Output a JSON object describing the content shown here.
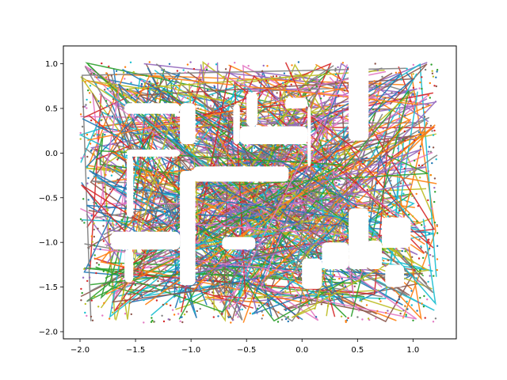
{
  "chart_data": {
    "type": "line",
    "title": "",
    "xlabel": "",
    "ylabel": "",
    "xlim": [
      -2.15,
      1.39
    ],
    "ylim": [
      -2.08,
      1.2
    ],
    "grid": false,
    "legend": "none",
    "x_ticks": [
      -2.0,
      -1.5,
      -1.0,
      -0.5,
      0.0,
      0.5,
      1.0
    ],
    "x_tick_labels": [
      "−2.0",
      "−1.5",
      "−1.0",
      "−0.5",
      "0.0",
      "0.5",
      "1.0"
    ],
    "y_ticks": [
      1.0,
      0.5,
      0.0,
      -0.5,
      -1.0,
      -1.5,
      -2.0
    ],
    "y_tick_labels": [
      "1.0",
      "0.5",
      "0.0",
      "−0.5",
      "−1.0",
      "−1.5",
      "−2.0"
    ],
    "region": {
      "x_range": [
        -2.0,
        1.22
      ],
      "y_range": [
        -1.9,
        1.02
      ]
    },
    "obstacles": [
      {
        "x": [
          -1.6,
          -1.1
        ],
        "y": [
          0.44,
          0.56
        ]
      },
      {
        "x": [
          -1.1,
          -0.96
        ],
        "y": [
          0.1,
          0.56
        ]
      },
      {
        "x": [
          -1.58,
          -1.1
        ],
        "y": [
          -0.04,
          0.04
        ]
      },
      {
        "x": [
          -1.58,
          -1.52
        ],
        "y": [
          -0.72,
          -0.04
        ]
      },
      {
        "x": [
          -1.72,
          -1.1
        ],
        "y": [
          -1.08,
          -0.88
        ]
      },
      {
        "x": [
          -1.6,
          -1.52
        ],
        "y": [
          -1.45,
          -1.08
        ]
      },
      {
        "x": [
          -1.1,
          -0.96
        ],
        "y": [
          -1.48,
          -0.2
        ]
      },
      {
        "x": [
          -0.96,
          -0.62
        ],
        "y": [
          -0.32,
          -0.2
        ]
      },
      {
        "x": [
          -0.62,
          -0.56
        ],
        "y": [
          0.1,
          0.55
        ]
      },
      {
        "x": [
          -0.56,
          0.05
        ],
        "y": [
          0.1,
          0.3
        ]
      },
      {
        "x": [
          -0.5,
          -0.4
        ],
        "y": [
          0.3,
          0.68
        ]
      },
      {
        "x": [
          0.05,
          0.08
        ],
        "y": [
          -0.15,
          0.52
        ]
      },
      {
        "x": [
          -0.98,
          -0.12
        ],
        "y": [
          -0.32,
          -0.15
        ]
      },
      {
        "x": [
          0.42,
          0.6
        ],
        "y": [
          0.14,
          1.02
        ]
      },
      {
        "x": [
          0.42,
          0.6
        ],
        "y": [
          -1.3,
          -0.62
        ]
      },
      {
        "x": [
          0.18,
          0.42
        ],
        "y": [
          -1.3,
          -1.0
        ]
      },
      {
        "x": [
          0.0,
          0.18
        ],
        "y": [
          -1.52,
          -1.18
        ]
      },
      {
        "x": [
          0.58,
          0.72
        ],
        "y": [
          -1.3,
          -0.98
        ]
      },
      {
        "x": [
          0.72,
          0.98
        ],
        "y": [
          -1.06,
          -0.72
        ]
      },
      {
        "x": [
          0.75,
          0.92
        ],
        "y": [
          -1.5,
          -1.25
        ]
      },
      {
        "x": [
          -0.72,
          -0.42
        ],
        "y": [
          -1.08,
          -0.94
        ]
      },
      {
        "x": [
          -0.15,
          0.05
        ],
        "y": [
          0.5,
          0.62
        ]
      }
    ],
    "series_count_estimate": 300,
    "series_colors": [
      "#1f77b4",
      "#ff7f0e",
      "#2ca02c",
      "#d62728",
      "#9467bd",
      "#8c564b",
      "#e377c2",
      "#7f7f7f",
      "#bcbd22",
      "#17becf"
    ]
  }
}
